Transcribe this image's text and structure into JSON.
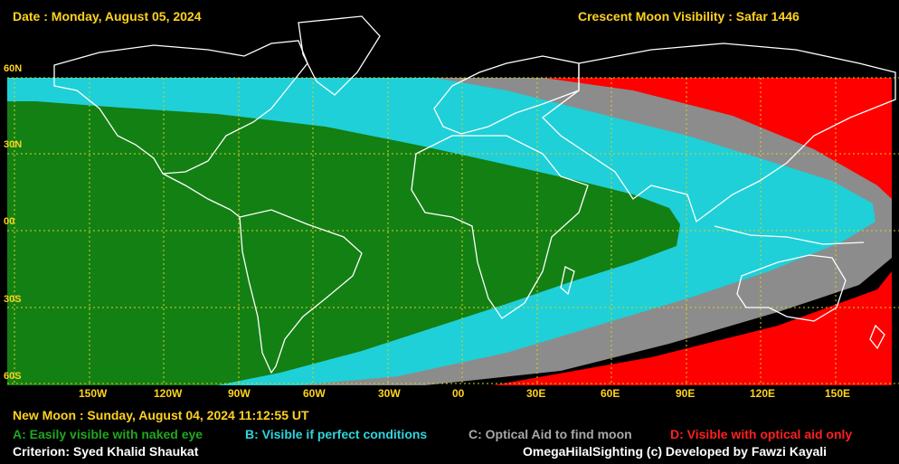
{
  "header": {
    "date": "Date : Monday, August 05, 2024",
    "title": "Crescent Moon Visibility : Safar  1446"
  },
  "lat_labels": [
    "60N",
    "30N",
    "00",
    "30S",
    "60S"
  ],
  "lon_labels": [
    "150W",
    "120W",
    "90W",
    "60W",
    "30W",
    "00",
    "30E",
    "60E",
    "90E",
    "120E",
    "150E"
  ],
  "legend": {
    "new_moon": "New Moon : Sunday, August 04, 2024  11:12:55  UT",
    "a": "A: Easily visible with naked eye",
    "b": "B: Visible if perfect conditions",
    "c": "C: Optical Aid to find moon",
    "d": "D: Visible with optical aid only",
    "criterion": "Criterion: Syed Khalid Shaukat",
    "credit": "OmegaHilalSighting  (c)  Developed by Fawzi Kayali"
  },
  "colors": {
    "zone_a": "#138013",
    "zone_b": "#1fd0d8",
    "zone_c": "#8c8c8c",
    "zone_d": "#ff0000",
    "grid": "#d8d020",
    "coast": "#ffffff"
  }
}
